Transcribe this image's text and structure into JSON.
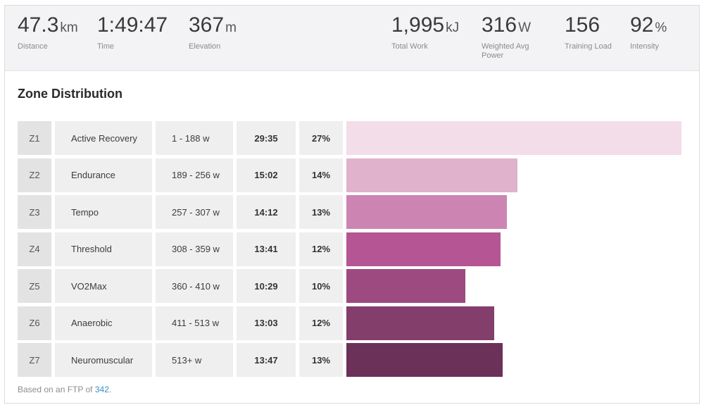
{
  "stats": [
    {
      "value": "47.3",
      "unit": "km",
      "label": "Distance"
    },
    {
      "value": "1:49:47",
      "unit": "",
      "label": "Time"
    },
    {
      "value": "367",
      "unit": "m",
      "label": "Elevation"
    },
    {
      "value": "1,995",
      "unit": "kJ",
      "label": "Total Work"
    },
    {
      "value": "316",
      "unit": "W",
      "label": "Weighted Avg Power"
    },
    {
      "value": "156",
      "unit": "",
      "label": "Training Load"
    },
    {
      "value": "92",
      "unit": "%",
      "label": "Intensity"
    }
  ],
  "zone_section": {
    "title": "Zone Distribution",
    "zones": [
      {
        "zone": "Z1",
        "name": "Active Recovery",
        "range": "1 - 188 w",
        "time": "29:35",
        "percent": "27%",
        "fill": 1.0,
        "color": "#f2dde9"
      },
      {
        "zone": "Z2",
        "name": "Endurance",
        "range": "189 - 256 w",
        "time": "15:02",
        "percent": "14%",
        "fill": 0.51,
        "color": "#e0b2cc"
      },
      {
        "zone": "Z3",
        "name": "Tempo",
        "range": "257 - 307 w",
        "time": "14:12",
        "percent": "13%",
        "fill": 0.48,
        "color": "#cc85b2"
      },
      {
        "zone": "Z4",
        "name": "Threshold",
        "range": "308 - 359 w",
        "time": "13:41",
        "percent": "12%",
        "fill": 0.46,
        "color": "#b55594"
      },
      {
        "zone": "Z5",
        "name": "VO2Max",
        "range": "360 - 410 w",
        "time": "10:29",
        "percent": "10%",
        "fill": 0.354,
        "color": "#9c4a7f"
      },
      {
        "zone": "Z6",
        "name": "Anaerobic",
        "range": "411 - 513 w",
        "time": "13:03",
        "percent": "12%",
        "fill": 0.441,
        "color": "#833e6c"
      },
      {
        "zone": "Z7",
        "name": "Neuromuscular",
        "range": "513+ w",
        "time": "13:47",
        "percent": "13%",
        "fill": 0.466,
        "color": "#6b3158"
      }
    ],
    "footnote_prefix": "Based on an FTP of ",
    "ftp_value": "342",
    "footnote_suffix": "."
  }
}
